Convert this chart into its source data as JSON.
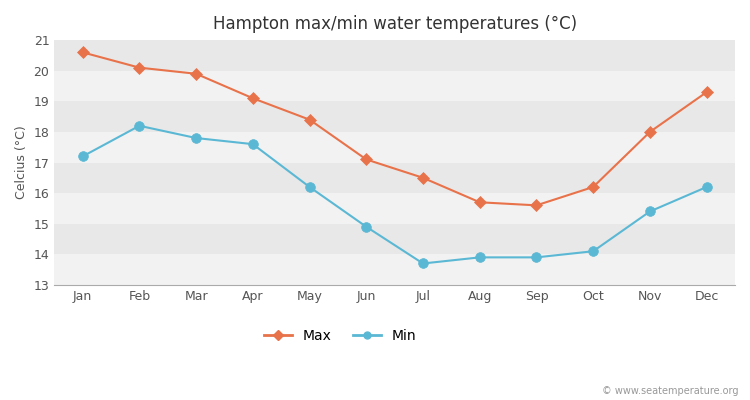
{
  "title": "Hampton max/min water temperatures (°C)",
  "ylabel": "Celcius (°C)",
  "months": [
    "Jan",
    "Feb",
    "Mar",
    "Apr",
    "May",
    "Jun",
    "Jul",
    "Aug",
    "Sep",
    "Oct",
    "Nov",
    "Dec"
  ],
  "max_values": [
    20.6,
    20.1,
    19.9,
    19.1,
    18.4,
    17.1,
    16.5,
    15.7,
    15.6,
    16.2,
    18.0,
    19.3
  ],
  "min_values": [
    17.2,
    18.2,
    17.8,
    17.6,
    16.2,
    14.9,
    13.7,
    13.9,
    13.9,
    14.1,
    15.4,
    16.2
  ],
  "max_color": "#e8724a",
  "min_color": "#5bb8d4",
  "max_marker": "D",
  "min_marker": "o",
  "ylim": [
    13,
    21
  ],
  "yticks": [
    13,
    14,
    15,
    16,
    17,
    18,
    19,
    20,
    21
  ],
  "band_colors": [
    "#f2f2f2",
    "#e8e8e8"
  ],
  "outer_bg": "#ffffff",
  "title_fontsize": 12,
  "axis_fontsize": 9,
  "tick_color": "#555555",
  "legend_labels": [
    "Max",
    "Min"
  ],
  "watermark": "© www.seatemperature.org"
}
